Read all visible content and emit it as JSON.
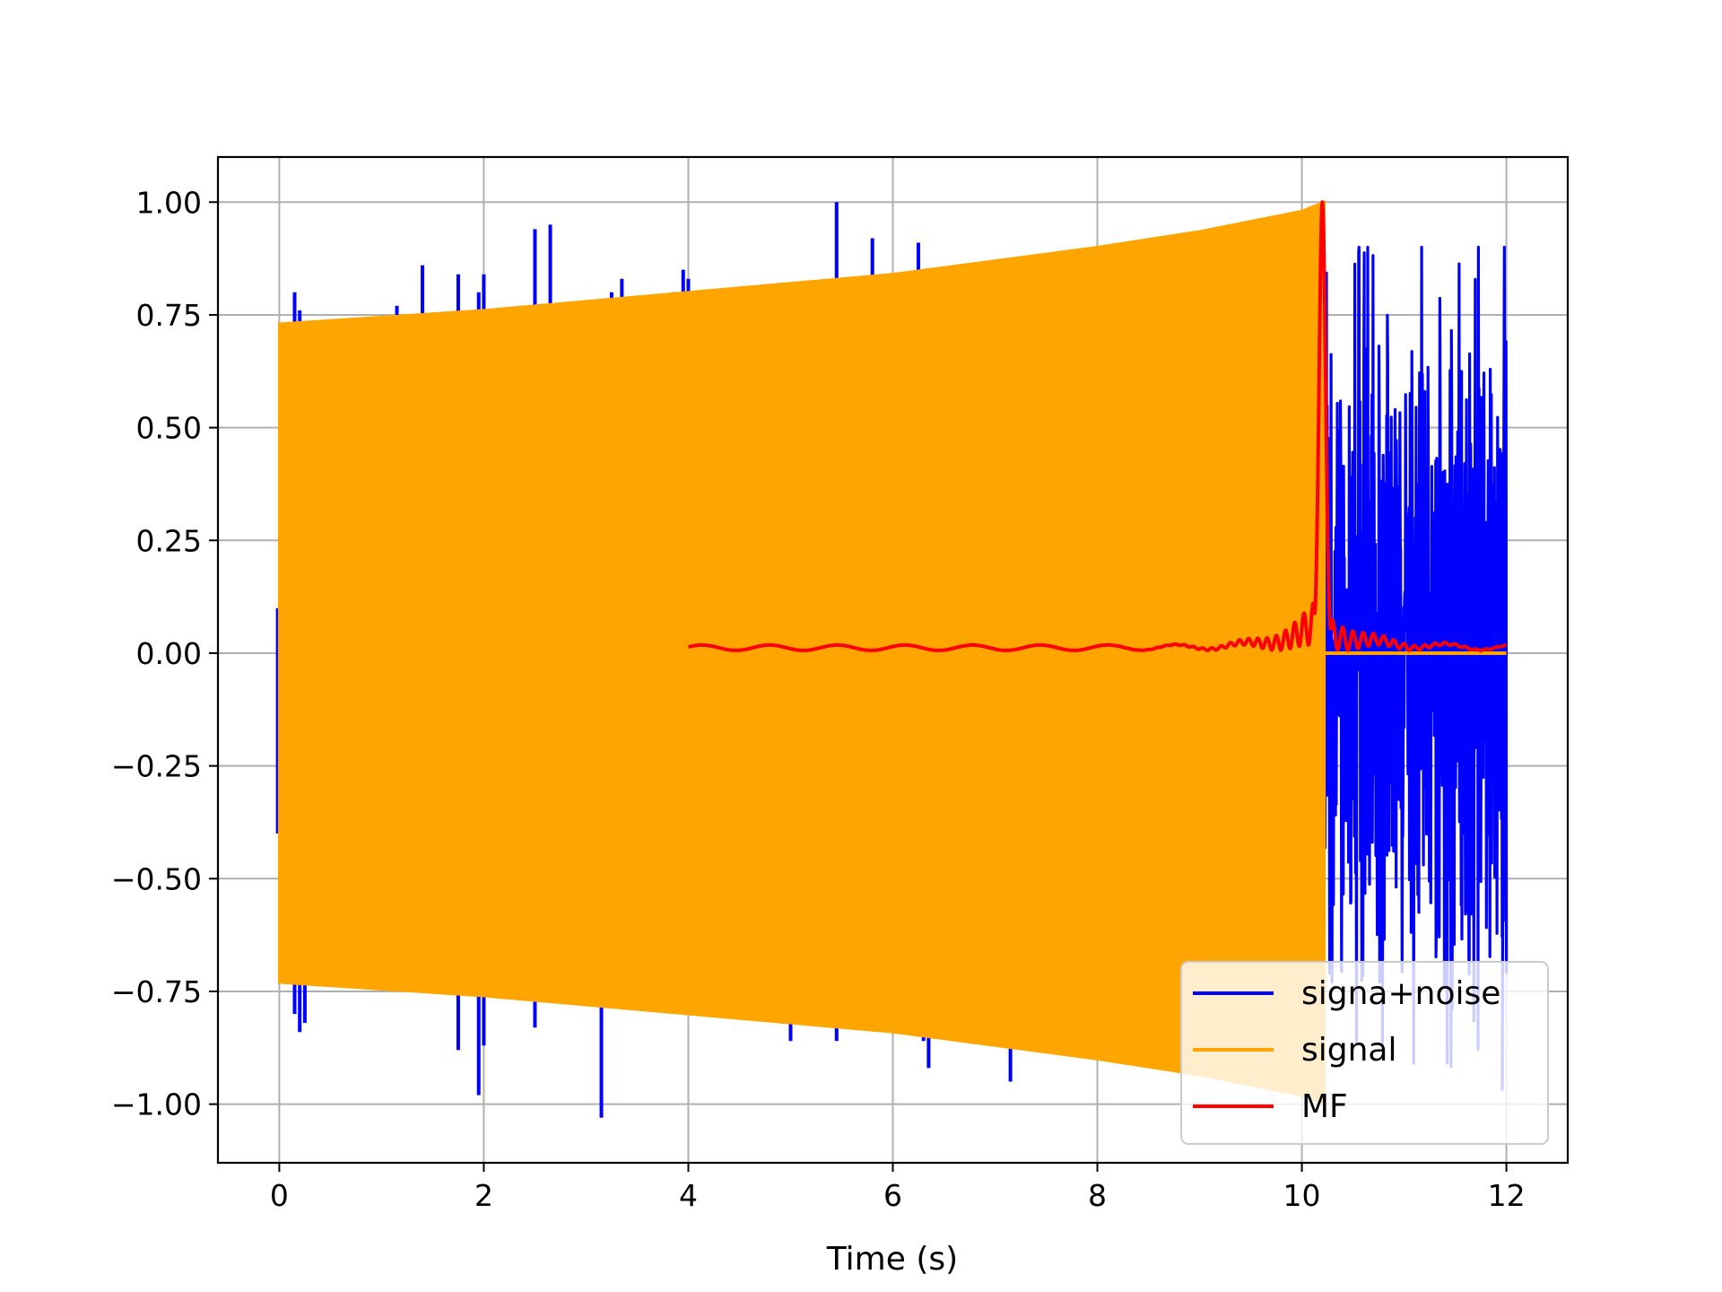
{
  "chart_data": {
    "type": "line",
    "xlabel": "Time (s)",
    "ylabel": "",
    "xlim": [
      -0.6,
      12.6
    ],
    "ylim": [
      -1.13,
      1.1
    ],
    "xticks": [
      0,
      2,
      4,
      6,
      8,
      10,
      12
    ],
    "xtick_labels": [
      "0",
      "2",
      "4",
      "6",
      "8",
      "10",
      "12"
    ],
    "yticks": [
      1.0,
      0.75,
      0.5,
      0.25,
      0.0,
      -0.25,
      -0.5,
      -0.75,
      -1.0
    ],
    "ytick_labels": [
      "1.00",
      "0.75",
      "0.50",
      "0.25",
      "0.00",
      "−0.25",
      "−0.50",
      "−0.75",
      "−1.00"
    ],
    "grid": true,
    "legend_position": "lower-right",
    "series": [
      {
        "name": "signa+noise",
        "color": "#0000ff",
        "spikes_high": [
          [
            0.15,
            0.8
          ],
          [
            0.2,
            0.76
          ],
          [
            1.15,
            0.77
          ],
          [
            1.4,
            0.86
          ],
          [
            1.75,
            0.84
          ],
          [
            1.95,
            0.8
          ],
          [
            2.0,
            0.84
          ],
          [
            2.5,
            0.94
          ],
          [
            2.65,
            0.95
          ],
          [
            3.25,
            0.8
          ],
          [
            3.35,
            0.83
          ],
          [
            3.85,
            0.8
          ],
          [
            3.95,
            0.85
          ],
          [
            4.0,
            0.83
          ],
          [
            5.45,
            1.0
          ],
          [
            5.8,
            0.92
          ],
          [
            6.25,
            0.91
          ]
        ],
        "spikes_low": [
          [
            0.15,
            -0.8
          ],
          [
            0.2,
            -0.84
          ],
          [
            0.25,
            -0.82
          ],
          [
            1.35,
            -0.75
          ],
          [
            1.75,
            -0.88
          ],
          [
            1.95,
            -0.98
          ],
          [
            2.0,
            -0.87
          ],
          [
            2.5,
            -0.83
          ],
          [
            3.15,
            -1.03
          ],
          [
            5.0,
            -0.86
          ],
          [
            5.45,
            -0.86
          ],
          [
            6.3,
            -0.86
          ],
          [
            6.35,
            -0.92
          ],
          [
            7.15,
            -0.95
          ]
        ],
        "noise_segment": {
          "x_start": 10.22,
          "x_end": 12.0,
          "peak_high": 0.9,
          "peak_low": -0.97
        }
      },
      {
        "name": "signal",
        "color": "#ffa500",
        "envelope": [
          [
            0.0,
            0.73
          ],
          [
            1.0,
            0.745
          ],
          [
            2.0,
            0.76
          ],
          [
            3.0,
            0.78
          ],
          [
            4.0,
            0.8
          ],
          [
            5.0,
            0.82
          ],
          [
            6.0,
            0.84
          ],
          [
            7.0,
            0.87
          ],
          [
            8.0,
            0.9
          ],
          [
            9.0,
            0.935
          ],
          [
            10.0,
            0.98
          ],
          [
            10.22,
            1.0
          ]
        ],
        "x_start": 0.0,
        "x_end": 10.22,
        "tail_value": 0.0,
        "tail_end": 12.0
      },
      {
        "name": "MF",
        "color": "#ff0000",
        "x_start": 4.0,
        "x_end": 12.0,
        "peak": [
          10.2,
          1.0
        ]
      }
    ]
  }
}
